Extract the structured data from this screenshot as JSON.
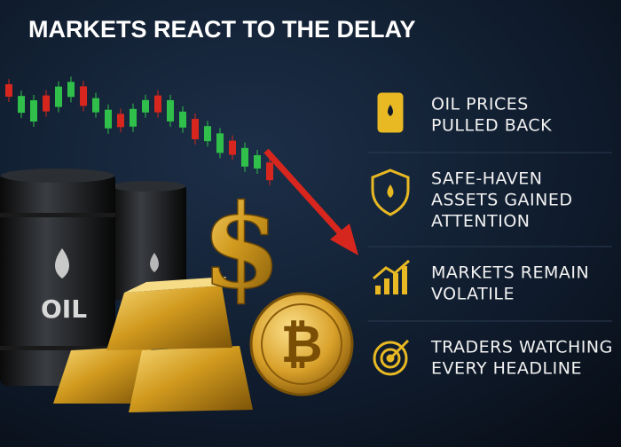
{
  "header": {
    "title": "MARKETS REACT TO THE DELAY"
  },
  "illustration": {
    "barrel_label": "OIL",
    "dollar": "$",
    "coin": "₿"
  },
  "items": [
    {
      "lines": [
        "OIL PRICES",
        "PULLED BACK"
      ]
    },
    {
      "lines": [
        "SAFE-HAVEN",
        "ASSETS GAINED",
        "ATTENTION"
      ]
    },
    {
      "lines": [
        "MARKETS REMAIN",
        "VOLATILE"
      ]
    },
    {
      "lines": [
        "TRADERS WATCHING",
        "EVERY HEADLINE"
      ]
    }
  ]
}
